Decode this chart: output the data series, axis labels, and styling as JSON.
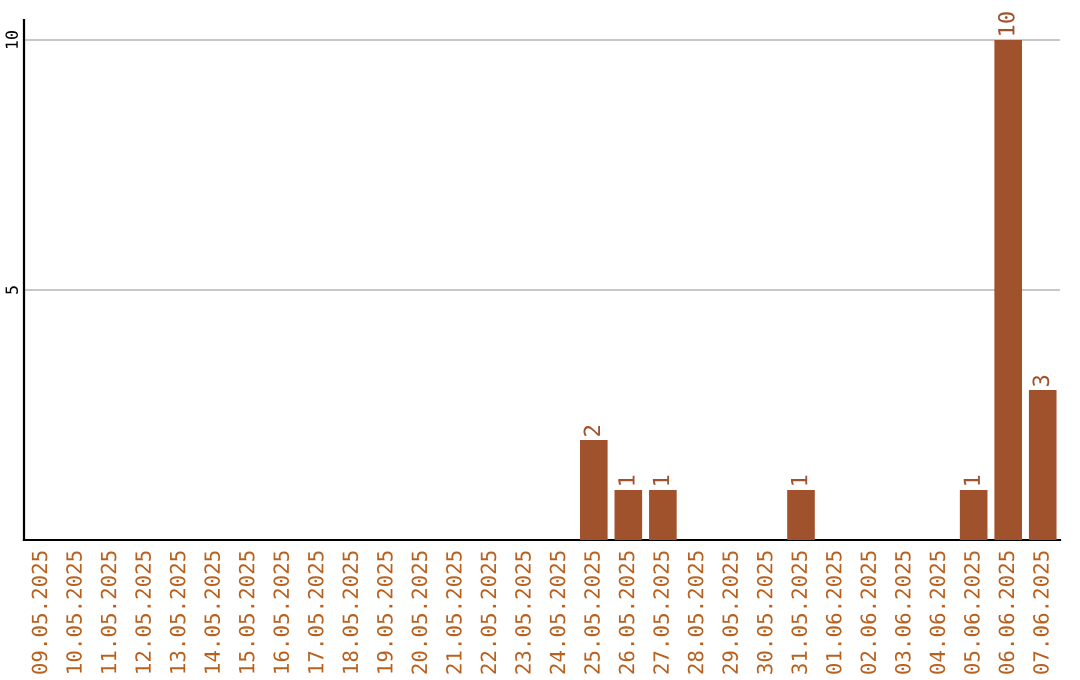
{
  "chart_data": {
    "type": "bar",
    "categories": [
      "09.05.2025",
      "10.05.2025",
      "11.05.2025",
      "12.05.2025",
      "13.05.2025",
      "14.05.2025",
      "15.05.2025",
      "16.05.2025",
      "17.05.2025",
      "18.05.2025",
      "19.05.2025",
      "20.05.2025",
      "21.05.2025",
      "22.05.2025",
      "23.05.2025",
      "24.05.2025",
      "25.05.2025",
      "26.05.2025",
      "27.05.2025",
      "28.05.2025",
      "29.05.2025",
      "30.05.2025",
      "31.05.2025",
      "01.06.2025",
      "02.06.2025",
      "03.06.2025",
      "04.06.2025",
      "05.06.2025",
      "06.06.2025",
      "07.06.2025"
    ],
    "values": [
      0,
      0,
      0,
      0,
      0,
      0,
      0,
      0,
      0,
      0,
      0,
      0,
      0,
      0,
      0,
      0,
      2,
      1,
      1,
      0,
      0,
      0,
      1,
      0,
      0,
      0,
      0,
      1,
      10,
      3
    ],
    "value_labels": [
      null,
      null,
      null,
      null,
      null,
      null,
      null,
      null,
      null,
      null,
      null,
      null,
      null,
      null,
      null,
      null,
      "2",
      "1",
      "1",
      null,
      null,
      null,
      "1",
      null,
      null,
      null,
      null,
      "1",
      "10",
      "3"
    ],
    "color": "#a0522d",
    "ylim": [
      0,
      10.4
    ],
    "yticks": [
      5,
      10
    ],
    "grid": "y"
  }
}
